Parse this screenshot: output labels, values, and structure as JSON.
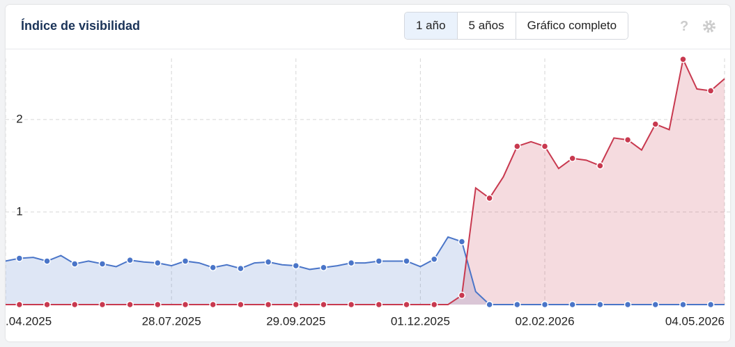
{
  "header": {
    "title": "Índice de visibilidad",
    "buttons": [
      "1 año",
      "5 años",
      "Gráfico completo"
    ],
    "help": "?"
  },
  "chart_data": {
    "type": "area",
    "categories": [
      ".04.2025",
      null,
      null,
      null,
      null,
      null,
      null,
      null,
      null,
      null,
      null,
      null,
      "28.07.2025",
      null,
      null,
      null,
      null,
      null,
      null,
      null,
      null,
      "29.09.2025",
      null,
      null,
      null,
      null,
      null,
      null,
      null,
      null,
      "01.12.2025",
      null,
      null,
      null,
      null,
      null,
      null,
      null,
      null,
      "02.02.2026",
      null,
      null,
      null,
      null,
      null,
      null,
      null,
      null,
      null,
      null,
      null,
      null,
      "04.05.2026"
    ],
    "series": [
      {
        "color": "#4a75c8",
        "values": [
          0.47,
          0.5,
          0.51,
          0.47,
          0.53,
          0.44,
          0.47,
          0.44,
          0.41,
          0.48,
          0.46,
          0.45,
          0.42,
          0.47,
          0.45,
          0.4,
          0.43,
          0.39,
          0.45,
          0.46,
          0.43,
          0.42,
          0.38,
          0.4,
          0.42,
          0.45,
          0.45,
          0.47,
          0.47,
          0.47,
          0.41,
          0.49,
          0.73,
          0.68,
          0.14,
          0,
          0,
          0,
          0,
          0,
          0,
          0,
          0,
          0,
          0,
          0,
          0,
          0,
          0,
          0,
          0,
          0,
          0
        ]
      },
      {
        "color": "#c8394f",
        "values": [
          0,
          0,
          0,
          0,
          0,
          0,
          0,
          0,
          0,
          0,
          0,
          0,
          0,
          0,
          0,
          0,
          0,
          0,
          0,
          0,
          0,
          0,
          0,
          0,
          0,
          0,
          0,
          0,
          0,
          0,
          0,
          0,
          0,
          0.1,
          1.26,
          1.15,
          1.38,
          1.71,
          1.76,
          1.71,
          1.47,
          1.58,
          1.56,
          1.5,
          1.8,
          1.78,
          1.67,
          1.95,
          1.89,
          2.65,
          2.33,
          2.31,
          2.44
        ]
      }
    ],
    "ylim": [
      0,
      2.75
    ],
    "yticks": [
      1,
      2
    ],
    "grid": true
  }
}
